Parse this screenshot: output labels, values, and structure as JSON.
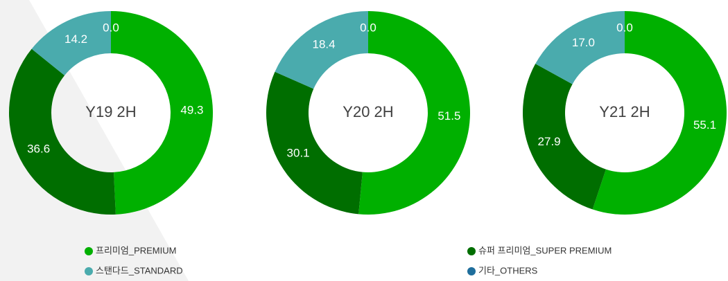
{
  "chart_data": [
    {
      "type": "pie",
      "title": "Y19 2H",
      "categories": [
        "프리미엄_PREMIUM",
        "슈퍼 프리미엄_SUPER PREMIUM",
        "스탠다드_STANDARD",
        "기타_OTHERS"
      ],
      "colors": [
        "#00b000",
        "#006e00",
        "#4aabad",
        "#1f6e9c"
      ],
      "values": [
        49.3,
        36.6,
        14.2,
        0.0
      ],
      "value_labels": [
        "49.3",
        "36.6",
        "14.2",
        "0.0"
      ]
    },
    {
      "type": "pie",
      "title": "Y20 2H",
      "categories": [
        "프리미엄_PREMIUM",
        "슈퍼 프리미엄_SUPER PREMIUM",
        "스탠다드_STANDARD",
        "기타_OTHERS"
      ],
      "colors": [
        "#00b000",
        "#006e00",
        "#4aabad",
        "#1f6e9c"
      ],
      "values": [
        51.5,
        30.1,
        18.4,
        0.0
      ],
      "value_labels": [
        "51.5",
        "30.1",
        "18.4",
        "0.0"
      ]
    },
    {
      "type": "pie",
      "title": "Y21 2H",
      "categories": [
        "프리미엄_PREMIUM",
        "슈퍼 프리미엄_SUPER PREMIUM",
        "스탠다드_STANDARD",
        "기타_OTHERS"
      ],
      "colors": [
        "#00b000",
        "#006e00",
        "#4aabad",
        "#1f6e9c"
      ],
      "values": [
        55.1,
        27.9,
        17.0,
        0.0
      ],
      "value_labels": [
        "55.1",
        "27.9",
        "17.0",
        "0.0"
      ]
    }
  ]
}
